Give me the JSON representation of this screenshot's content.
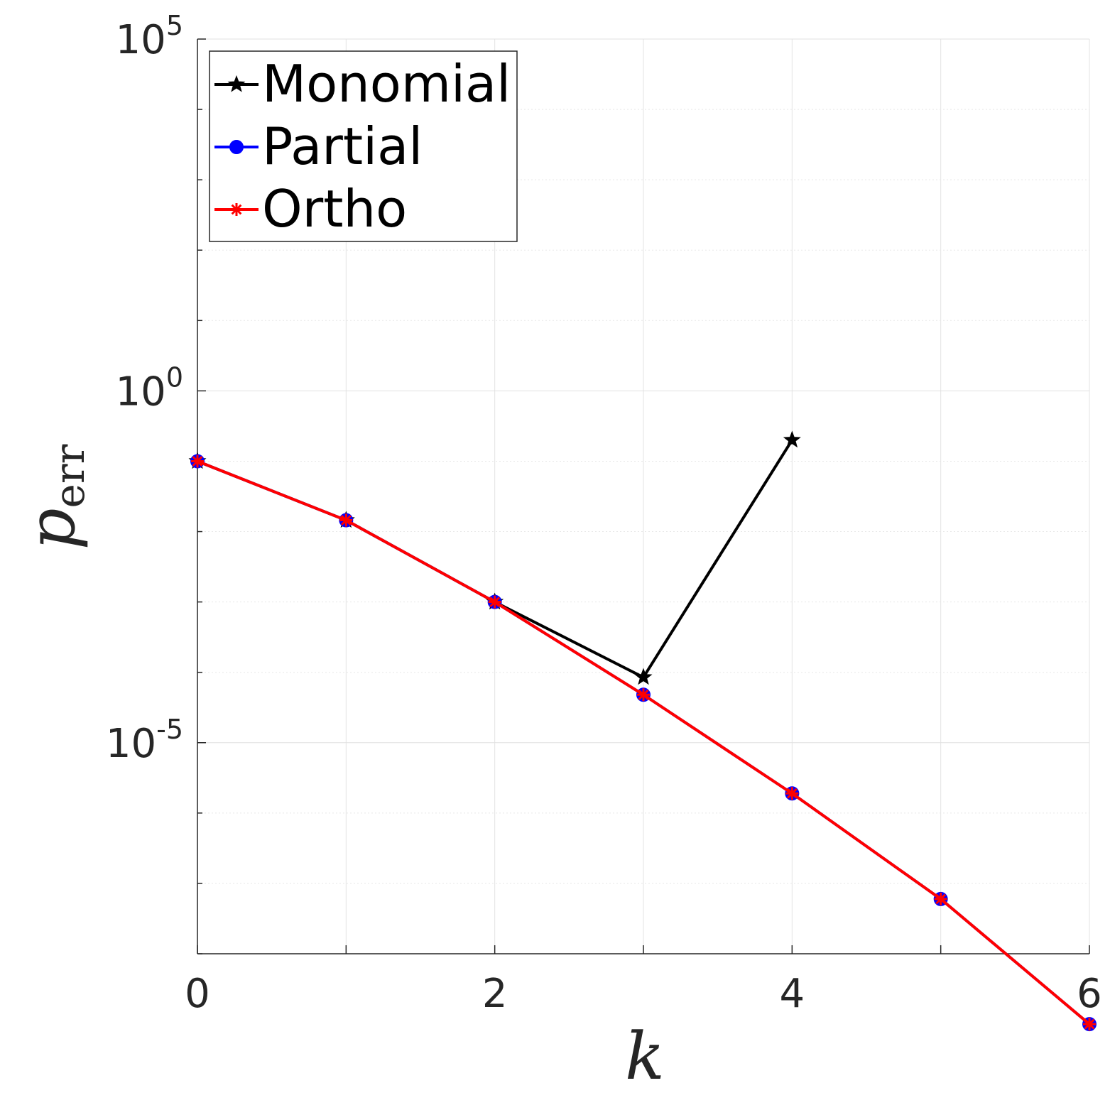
{
  "chart_data": {
    "type": "line",
    "title": "",
    "xlabel": "k",
    "ylabel": {
      "main": "p",
      "sub": "err"
    },
    "x_scale": "linear",
    "y_scale": "log",
    "xlim": [
      0,
      6
    ],
    "ylim": [
      1e-08,
      100000.0
    ],
    "x_ticks": [
      {
        "value": 0,
        "label": "0"
      },
      {
        "value": 2,
        "label": "2"
      },
      {
        "value": 4,
        "label": "4"
      },
      {
        "value": 6,
        "label": "6"
      }
    ],
    "y_ticks": [
      {
        "value": 100000.0,
        "base": "10",
        "exp": "5"
      },
      {
        "value": 1,
        "base": "10",
        "exp": "0"
      },
      {
        "value": 1e-05,
        "base": "10",
        "exp": "-5"
      }
    ],
    "grid": true,
    "legend_position": "top-left",
    "series": [
      {
        "name": "Monomial",
        "color": "#000000",
        "marker": "pentagram",
        "x": [
          0,
          1,
          2,
          3,
          4
        ],
        "y": [
          0.1,
          0.0145,
          0.001,
          8.5e-05,
          0.2
        ]
      },
      {
        "name": "Partial",
        "color": "#0000ff",
        "marker": "circle",
        "x": [
          0,
          1,
          2,
          3,
          4,
          5,
          6
        ],
        "y": [
          0.1,
          0.0145,
          0.001,
          4.8e-05,
          1.9e-06,
          6e-08,
          1e-09
        ]
      },
      {
        "name": "Ortho",
        "color": "#ff0000",
        "marker": "asterisk",
        "x": [
          0,
          1,
          2,
          3,
          4,
          5,
          6
        ],
        "y": [
          0.1,
          0.0145,
          0.001,
          4.8e-05,
          1.9e-06,
          6e-08,
          1e-09
        ]
      }
    ]
  }
}
